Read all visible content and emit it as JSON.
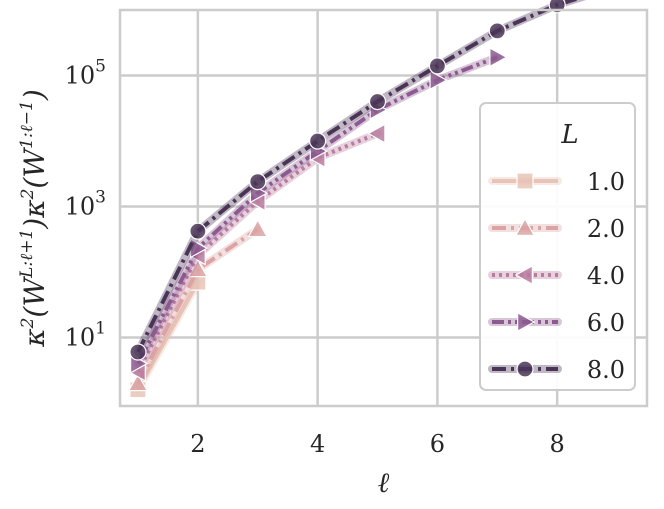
{
  "chart_data": {
    "type": "line",
    "xlabel": "ℓ",
    "ylabel": "κ²(W^{L:ℓ+1}) κ²(W^{1:ℓ−1})",
    "yscale": "log",
    "xlim": [
      0.7,
      9.5
    ],
    "ylim": [
      0.9,
      1000000
    ],
    "xticks": [
      2,
      4,
      6,
      8
    ],
    "xtick_labels": [
      "2",
      "4",
      "6",
      "8"
    ],
    "yticks": [
      10,
      1000,
      100000
    ],
    "ytick_labels": [
      {
        "base": "10",
        "exp": "1"
      },
      {
        "base": "10",
        "exp": "3"
      },
      {
        "base": "10",
        "exp": "5"
      }
    ],
    "grid": true,
    "legend": {
      "title": "L",
      "placement": "lower-right"
    },
    "series": [
      {
        "name": "1.0",
        "color": "#e8c4b6",
        "marker": "square",
        "dash": "solid",
        "x": [
          1,
          2
        ],
        "y": [
          1.6,
          70
        ]
      },
      {
        "name": "2.0",
        "color": "#dba3a3",
        "marker": "triangle-up",
        "dash": "dashdot",
        "x": [
          1,
          2,
          3
        ],
        "y": [
          2.0,
          110,
          450
        ]
      },
      {
        "name": "4.0",
        "color": "#b97b9f",
        "marker": "triangle-left",
        "dash": "dotted",
        "x": [
          1,
          2,
          3,
          4,
          5
        ],
        "y": [
          3.0,
          180,
          1200,
          5500,
          13000
        ]
      },
      {
        "name": "6.0",
        "color": "#8c5a8f",
        "marker": "triangle-right",
        "dash": "dashdotdot",
        "x": [
          1,
          2,
          3,
          4,
          5,
          6,
          7
        ],
        "y": [
          4.0,
          230,
          1600,
          7000,
          30000,
          85000,
          190000
        ]
      },
      {
        "name": "8.0",
        "color": "#4a3557",
        "marker": "circle",
        "dash": "dashdot",
        "x": [
          1,
          2,
          3,
          4,
          5,
          6,
          7,
          8,
          9
        ],
        "y": [
          6.0,
          420,
          2400,
          10000,
          40000,
          140000,
          480000,
          1200000,
          2300000
        ]
      }
    ]
  }
}
